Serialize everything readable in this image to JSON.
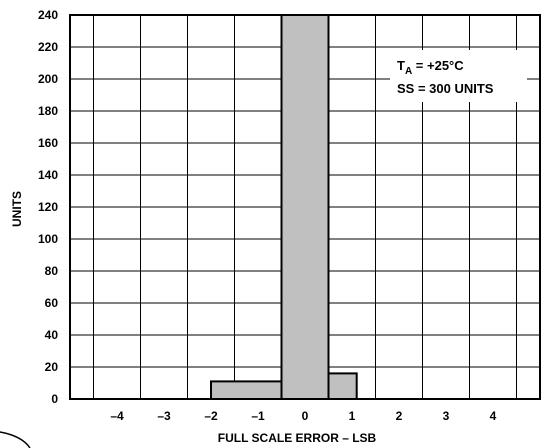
{
  "chart_data": {
    "type": "bar",
    "title": "",
    "xlabel": "FULL SCALE ERROR – LSB",
    "ylabel": "UNITS",
    "xlim": [
      -5,
      5
    ],
    "ylim": [
      0,
      240
    ],
    "x_ticks": [
      -4,
      -3,
      -2,
      -1,
      0,
      1,
      2,
      3,
      4
    ],
    "x_tick_labels": [
      "–4",
      "–3",
      "–2",
      "–1",
      "0",
      "1",
      "2",
      "3",
      "4"
    ],
    "y_ticks": [
      0,
      20,
      40,
      60,
      80,
      100,
      120,
      140,
      160,
      180,
      200,
      220,
      240
    ],
    "y_tick_labels": [
      "0",
      "20",
      "40",
      "60",
      "80",
      "100",
      "120",
      "140",
      "160",
      "180",
      "200",
      "220",
      "240"
    ],
    "bins": [
      {
        "x0": -2,
        "x1": -0.5,
        "value": 11
      },
      {
        "x0": -0.5,
        "x1": 0.5,
        "value": 240
      },
      {
        "x0": 0.5,
        "x1": 1.1,
        "value": 16
      }
    ],
    "grid": true,
    "annotation": {
      "line1_main": "T",
      "line1_sub": "A",
      "line1_rest": " = +25°C",
      "line2": "SS = 300 UNITS",
      "position": "top-right"
    },
    "bar_fill": "#c0c0c0",
    "bar_stroke": "#000000"
  }
}
